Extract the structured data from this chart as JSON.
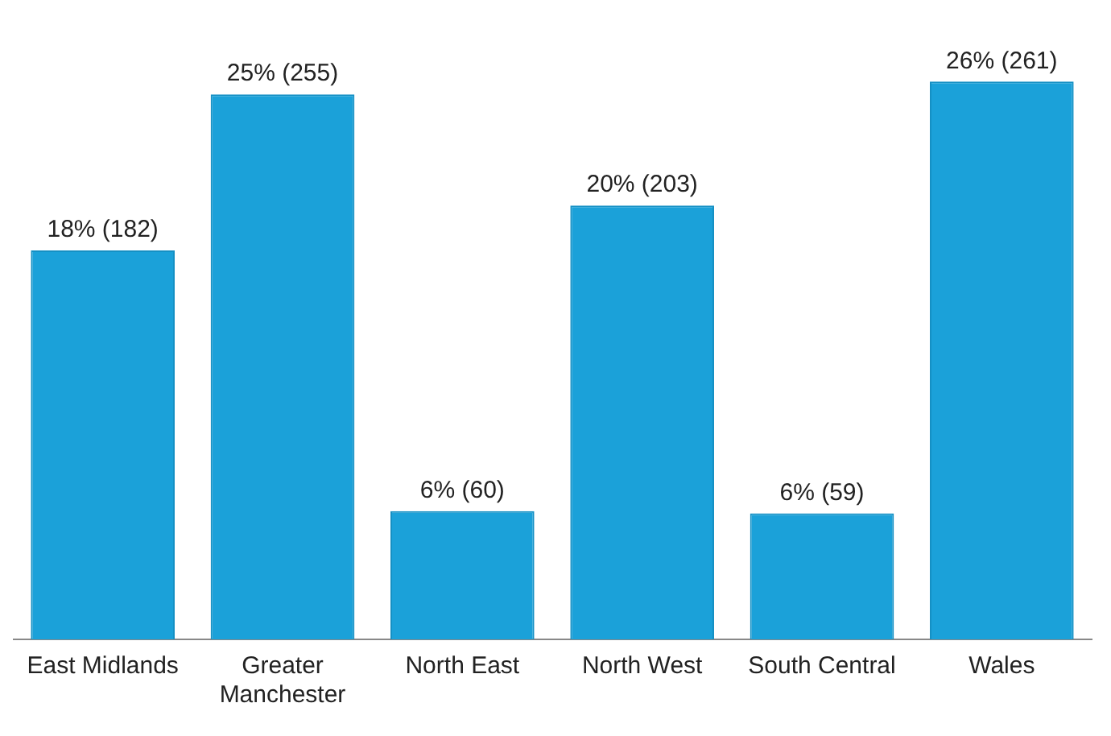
{
  "chart_data": {
    "type": "bar",
    "categories": [
      "East Midlands",
      "Greater Manchester",
      "North East",
      "North West",
      "South Central",
      "Wales"
    ],
    "values": [
      182,
      255,
      60,
      203,
      59,
      261
    ],
    "value_labels": [
      "18% (182)",
      "25% (255)",
      "6% (60)",
      "20% (203)",
      "6% (59)",
      "26% (261)"
    ],
    "color": "#1ba1d9",
    "grid": false,
    "legend": false
  }
}
